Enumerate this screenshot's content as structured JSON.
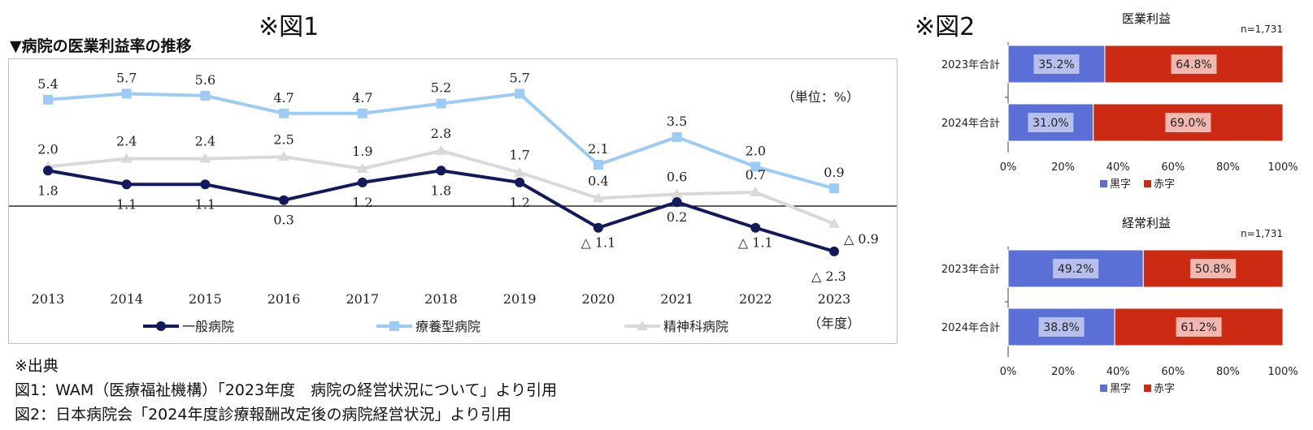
{
  "labels": {
    "fig1": "※図1",
    "fig2": "※図2"
  },
  "chart_data": [
    {
      "type": "line",
      "title": "▼病院の医業利益率の推移",
      "unit_label": "（単位：%）",
      "xlabel": "（年度）",
      "categories": [
        "2013",
        "2014",
        "2015",
        "2016",
        "2017",
        "2018",
        "2019",
        "2020",
        "2021",
        "2022",
        "2023"
      ],
      "ylim": [
        -3,
        6.5
      ],
      "series": [
        {
          "name": "一般病院",
          "color": "#131a5c",
          "marker": "circle",
          "values": [
            1.8,
            1.1,
            1.1,
            0.3,
            1.2,
            1.8,
            1.2,
            -1.1,
            0.2,
            -1.1,
            -2.3
          ],
          "labels": [
            "1.8",
            "1.1",
            "1.1",
            "0.3",
            "1.2",
            "1.8",
            "1.2",
            "△ 1.1",
            "0.2",
            "△ 1.1",
            "△ 2.3"
          ]
        },
        {
          "name": "療養型病院",
          "color": "#9ccbf6",
          "marker": "square",
          "values": [
            5.4,
            5.7,
            5.6,
            4.7,
            4.7,
            5.2,
            5.7,
            2.1,
            3.5,
            2.0,
            0.9
          ],
          "labels": [
            "5.4",
            "5.7",
            "5.6",
            "4.7",
            "4.7",
            "5.2",
            "5.7",
            "2.1",
            "3.5",
            "2.0",
            "0.9"
          ]
        },
        {
          "name": "精神科病院",
          "color": "#d9d9d9",
          "marker": "triangle",
          "values": [
            2.0,
            2.4,
            2.4,
            2.5,
            1.9,
            2.8,
            1.7,
            0.4,
            0.6,
            0.7,
            -0.9
          ],
          "labels": [
            "2.0",
            "2.4",
            "2.4",
            "2.5",
            "1.9",
            "2.8",
            "1.7",
            "0.4",
            "0.6",
            "0.7",
            "△ 0.9"
          ]
        }
      ]
    },
    {
      "type": "bar",
      "orientation": "horizontal-stacked",
      "title": "医業利益",
      "n_label": "n=1,731",
      "categories": [
        "2023年合計",
        "2024年合計"
      ],
      "series": [
        {
          "name": "黒字",
          "color": "#5b6fd6",
          "values": [
            35.2,
            31.0
          ],
          "labels": [
            "35.2%",
            "31.0%"
          ]
        },
        {
          "name": "赤字",
          "color": "#cc2a12",
          "values": [
            64.8,
            69.0
          ],
          "labels": [
            "64.8%",
            "69.0%"
          ]
        }
      ],
      "xlim": [
        0,
        100
      ],
      "ticks": [
        "0%",
        "20%",
        "40%",
        "60%",
        "80%",
        "100%"
      ]
    },
    {
      "type": "bar",
      "orientation": "horizontal-stacked",
      "title": "経常利益",
      "n_label": "n=1,731",
      "categories": [
        "2023年合計",
        "2024年合計"
      ],
      "series": [
        {
          "name": "黒字",
          "color": "#5b6fd6",
          "values": [
            49.2,
            38.8
          ],
          "labels": [
            "49.2%",
            "38.8%"
          ]
        },
        {
          "name": "赤字",
          "color": "#cc2a12",
          "values": [
            50.8,
            61.2
          ],
          "labels": [
            "50.8%",
            "61.2%"
          ]
        }
      ],
      "xlim": [
        0,
        100
      ],
      "ticks": [
        "0%",
        "20%",
        "40%",
        "60%",
        "80%",
        "100%"
      ]
    }
  ],
  "source": {
    "heading": "※出典",
    "line1": "図1：WAM（医療福祉機構）「2023年度　病院の経営状況について」より引用",
    "line2": "図2：日本病院会「2024年度診療報酬改定後の病院経営状況」より引用"
  }
}
